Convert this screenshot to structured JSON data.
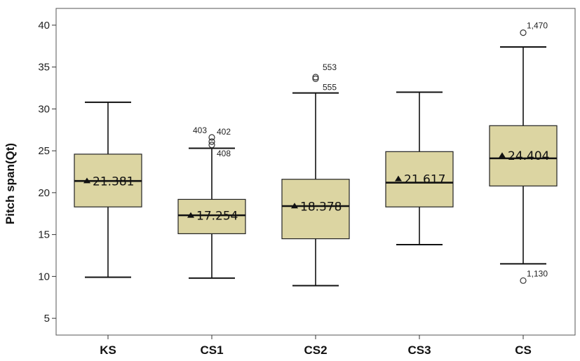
{
  "chart_data": {
    "type": "boxplot",
    "title": "",
    "xlabel": "",
    "ylabel": "Pitch span(Qt)",
    "ylim": [
      3,
      42
    ],
    "yticks": [
      5,
      10,
      15,
      20,
      25,
      30,
      35,
      40
    ],
    "grid": false,
    "box_color": "#dcd5a2",
    "categories": [
      "KS",
      "CS1",
      "CS2",
      "CS3",
      "CS"
    ],
    "boxes": [
      {
        "category": "KS",
        "whisker_low": 9.9,
        "q1": 18.3,
        "median": 21.4,
        "q3": 24.6,
        "whisker_high": 30.8,
        "mean": 21.381,
        "mean_label": "21.381",
        "outliers": []
      },
      {
        "category": "CS1",
        "whisker_low": 9.8,
        "q1": 15.1,
        "median": 17.3,
        "q3": 19.2,
        "whisker_high": 25.3,
        "mean": 17.254,
        "mean_label": "17.254",
        "outliers": [
          {
            "value": 26.6,
            "label": "403"
          },
          {
            "value": 26.1,
            "label": "402"
          },
          {
            "value": 25.7,
            "label": "408"
          }
        ]
      },
      {
        "category": "CS2",
        "whisker_low": 8.9,
        "q1": 14.5,
        "median": 18.4,
        "q3": 21.6,
        "whisker_high": 31.9,
        "mean": 18.378,
        "mean_label": "18.378",
        "outliers": [
          {
            "value": 33.8,
            "label": "553"
          },
          {
            "value": 33.6,
            "label": "555"
          }
        ]
      },
      {
        "category": "CS3",
        "whisker_low": 13.8,
        "q1": 18.3,
        "median": 21.2,
        "q3": 24.9,
        "whisker_high": 32.0,
        "mean": 21.617,
        "mean_label": "21.617",
        "outliers": []
      },
      {
        "category": "CS",
        "whisker_low": 11.5,
        "q1": 20.8,
        "median": 24.1,
        "q3": 28.0,
        "whisker_high": 37.4,
        "mean": 24.404,
        "mean_label": "24.404",
        "outliers": [
          {
            "value": 39.1,
            "label": "1,470"
          },
          {
            "value": 9.5,
            "label": "1,130"
          }
        ]
      }
    ]
  }
}
